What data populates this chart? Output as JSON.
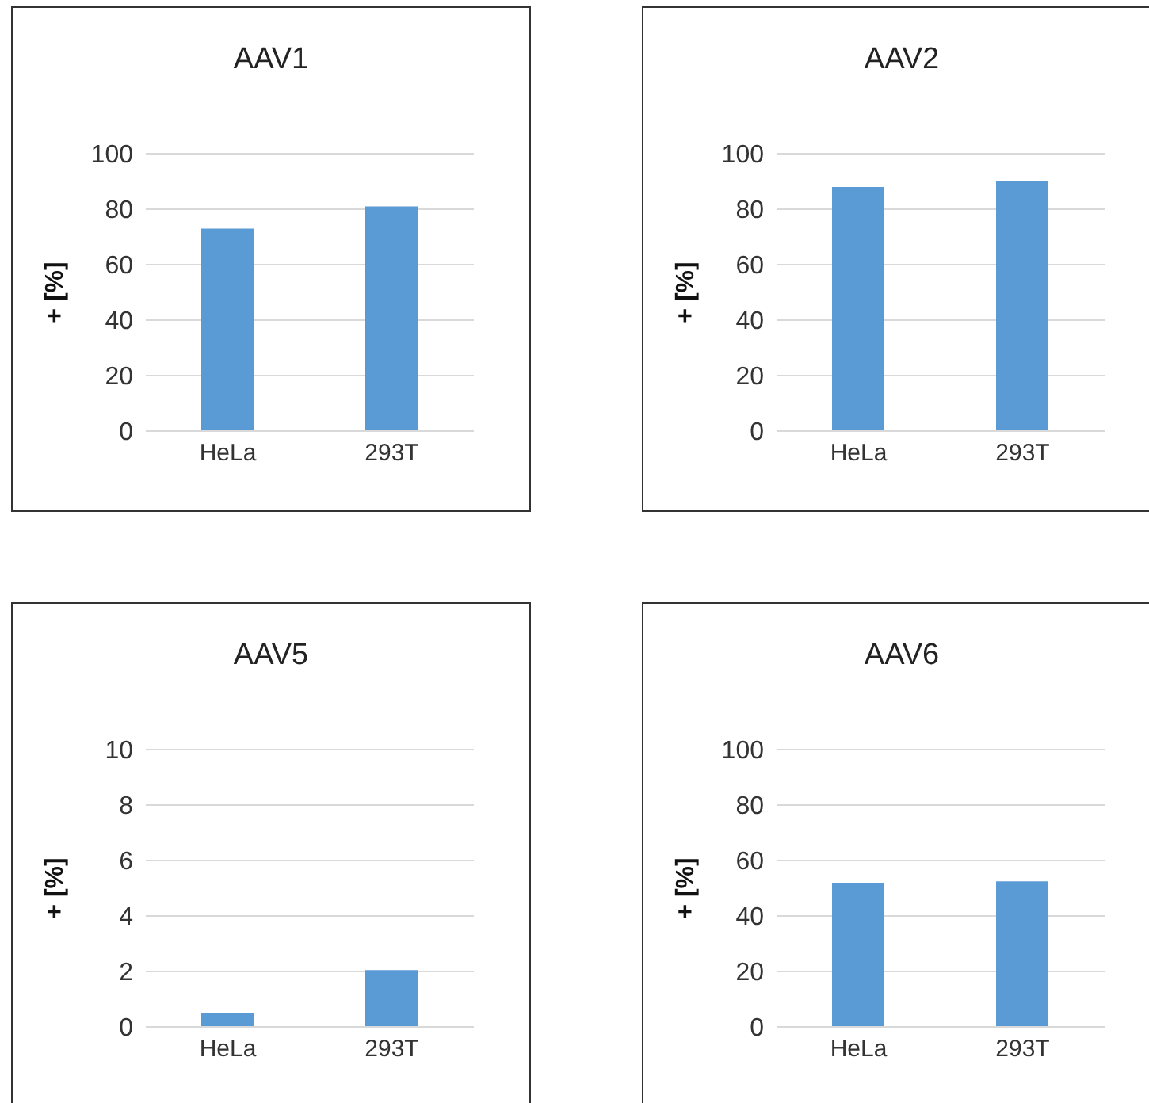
{
  "chart_data": [
    {
      "type": "bar",
      "title": "AAV1",
      "ylabel": "+ [%]",
      "categories": [
        "HeLa",
        "293T"
      ],
      "values": [
        73,
        81
      ],
      "color": "#5b9bd5",
      "ylim": [
        0,
        100
      ],
      "yticks": [
        0,
        20,
        40,
        60,
        80,
        100
      ],
      "grid": "y"
    },
    {
      "type": "bar",
      "title": "AAV2",
      "ylabel": "+ [%]",
      "categories": [
        "HeLa",
        "293T"
      ],
      "values": [
        88,
        90
      ],
      "color": "#5b9bd5",
      "ylim": [
        0,
        100
      ],
      "yticks": [
        0,
        20,
        40,
        60,
        80,
        100
      ],
      "grid": "y"
    },
    {
      "type": "bar",
      "title": "AAV5",
      "ylabel": "+ [%]",
      "categories": [
        "HeLa",
        "293T"
      ],
      "values": [
        0.5,
        2.05
      ],
      "color": "#5b9bd5",
      "ylim": [
        0,
        10
      ],
      "yticks": [
        0,
        2,
        4,
        6,
        8,
        10
      ],
      "grid": "y"
    },
    {
      "type": "bar",
      "title": "AAV6",
      "ylabel": "+ [%]",
      "categories": [
        "HeLa",
        "293T"
      ],
      "values": [
        52,
        52.5
      ],
      "color": "#5b9bd5",
      "ylim": [
        0,
        100
      ],
      "yticks": [
        0,
        20,
        40,
        60,
        80,
        100
      ],
      "grid": "y"
    }
  ]
}
